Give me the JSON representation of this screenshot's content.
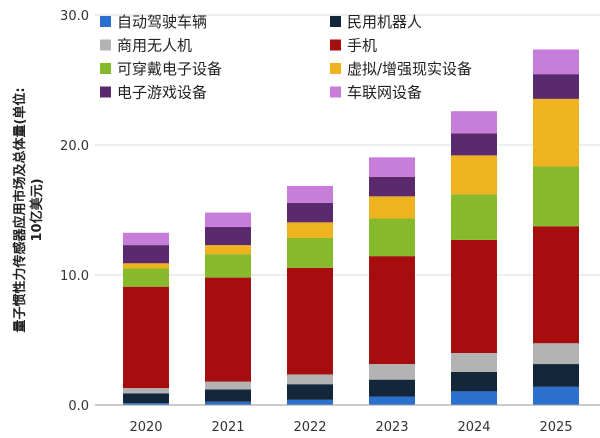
{
  "chart_data": {
    "type": "bar",
    "stacked": true,
    "ylabel_lines": [
      "量子惯性力传感器应用市场及总体量(单位:",
      "10亿美元)"
    ],
    "categories": [
      "2020",
      "2021",
      "2022",
      "2023",
      "2024",
      "2025"
    ],
    "ylim": [
      0,
      30
    ],
    "yticks": [
      "0.0",
      "10.0",
      "20.0",
      "30.0"
    ],
    "ytick_values": [
      0,
      10,
      20,
      30
    ],
    "grid": true,
    "legend_position": "top",
    "series": [
      {
        "name": "自动驾驶车辆",
        "color": "#2b6fcf",
        "values": [
          0.15,
          0.25,
          0.4,
          0.65,
          1.05,
          1.4
        ]
      },
      {
        "name": "民用机器人",
        "color": "#13263a",
        "values": [
          0.75,
          0.95,
          1.2,
          1.3,
          1.5,
          1.75
        ]
      },
      {
        "name": "商用无人机",
        "color": "#b3b3b3",
        "values": [
          0.4,
          0.6,
          0.75,
          1.2,
          1.45,
          1.6
        ]
      },
      {
        "name": "手机",
        "color": "#a50d0f",
        "values": [
          7.8,
          8.0,
          8.2,
          8.3,
          8.7,
          9.0
        ]
      },
      {
        "name": "可穿戴电子设备",
        "color": "#86b92b",
        "values": [
          1.4,
          1.8,
          2.3,
          2.9,
          3.5,
          4.6
        ]
      },
      {
        "name": "虚拟/增强现实设备",
        "color": "#efb31f",
        "values": [
          0.4,
          0.7,
          1.2,
          1.7,
          3.0,
          5.2
        ]
      },
      {
        "name": "电子游戏设备",
        "color": "#5b2a6e",
        "values": [
          1.4,
          1.4,
          1.5,
          1.5,
          1.7,
          1.9
        ]
      },
      {
        "name": "车联网设备",
        "color": "#c77dda",
        "values": [
          0.95,
          1.1,
          1.3,
          1.5,
          1.7,
          1.9
        ]
      }
    ]
  }
}
